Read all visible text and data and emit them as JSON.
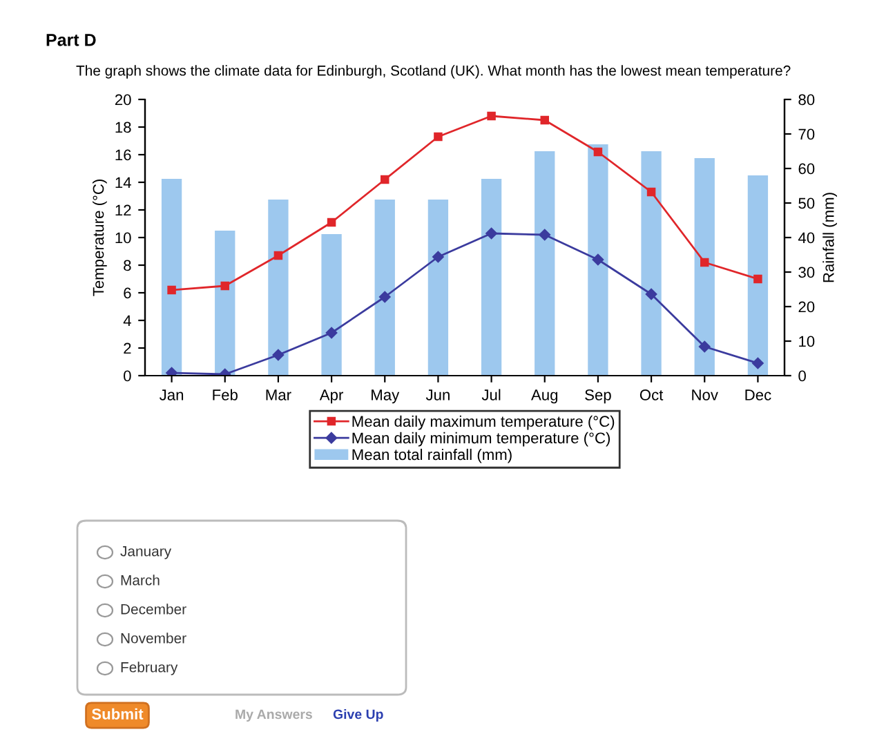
{
  "chart_data": {
    "type": "line",
    "title": "Part D",
    "subtitle": "The graph shows the climate data for Edinburgh, Scotland (UK). What month has the lowest mean temperature?",
    "categories": [
      "Jan",
      "Feb",
      "Mar",
      "Apr",
      "May",
      "Jun",
      "Jul",
      "Aug",
      "Sep",
      "Oct",
      "Nov",
      "Dec"
    ],
    "series": [
      {
        "name": "Mean daily maximum temperature (°C)",
        "color": "#e0262a",
        "marker": "square",
        "values": [
          6.2,
          6.5,
          8.7,
          11.1,
          14.2,
          17.3,
          18.8,
          18.5,
          16.2,
          13.3,
          8.2,
          7.0
        ]
      },
      {
        "name": "Mean daily minimum temperature (°C)",
        "color": "#3b3b9e",
        "marker": "diamond",
        "values": [
          0.2,
          0.1,
          1.5,
          3.1,
          5.7,
          8.6,
          10.3,
          10.2,
          8.4,
          5.9,
          2.1,
          0.9
        ]
      },
      {
        "name": "Mean total rainfall (mm)",
        "type": "bar",
        "axis": "y2",
        "color": "#9dc8ee",
        "values": [
          57,
          42,
          51,
          41,
          51,
          51,
          57,
          65,
          67,
          65,
          63,
          58
        ]
      }
    ],
    "ylabel": "Temperature (°C)",
    "y2label": "Rainfall (mm)",
    "ylim": [
      0,
      20
    ],
    "yticks": [
      0,
      2,
      4,
      6,
      8,
      10,
      12,
      14,
      16,
      18,
      20
    ],
    "y2lim": [
      0,
      80
    ],
    "y2ticks": [
      0,
      10,
      20,
      30,
      40,
      50,
      60,
      70,
      80
    ],
    "legend": "bottom",
    "grid": false,
    "line_style": "solid",
    "annotations": [
      "January",
      "March",
      "December",
      "November",
      "February",
      "Submit",
      "My Answers",
      "Give Up"
    ]
  }
}
